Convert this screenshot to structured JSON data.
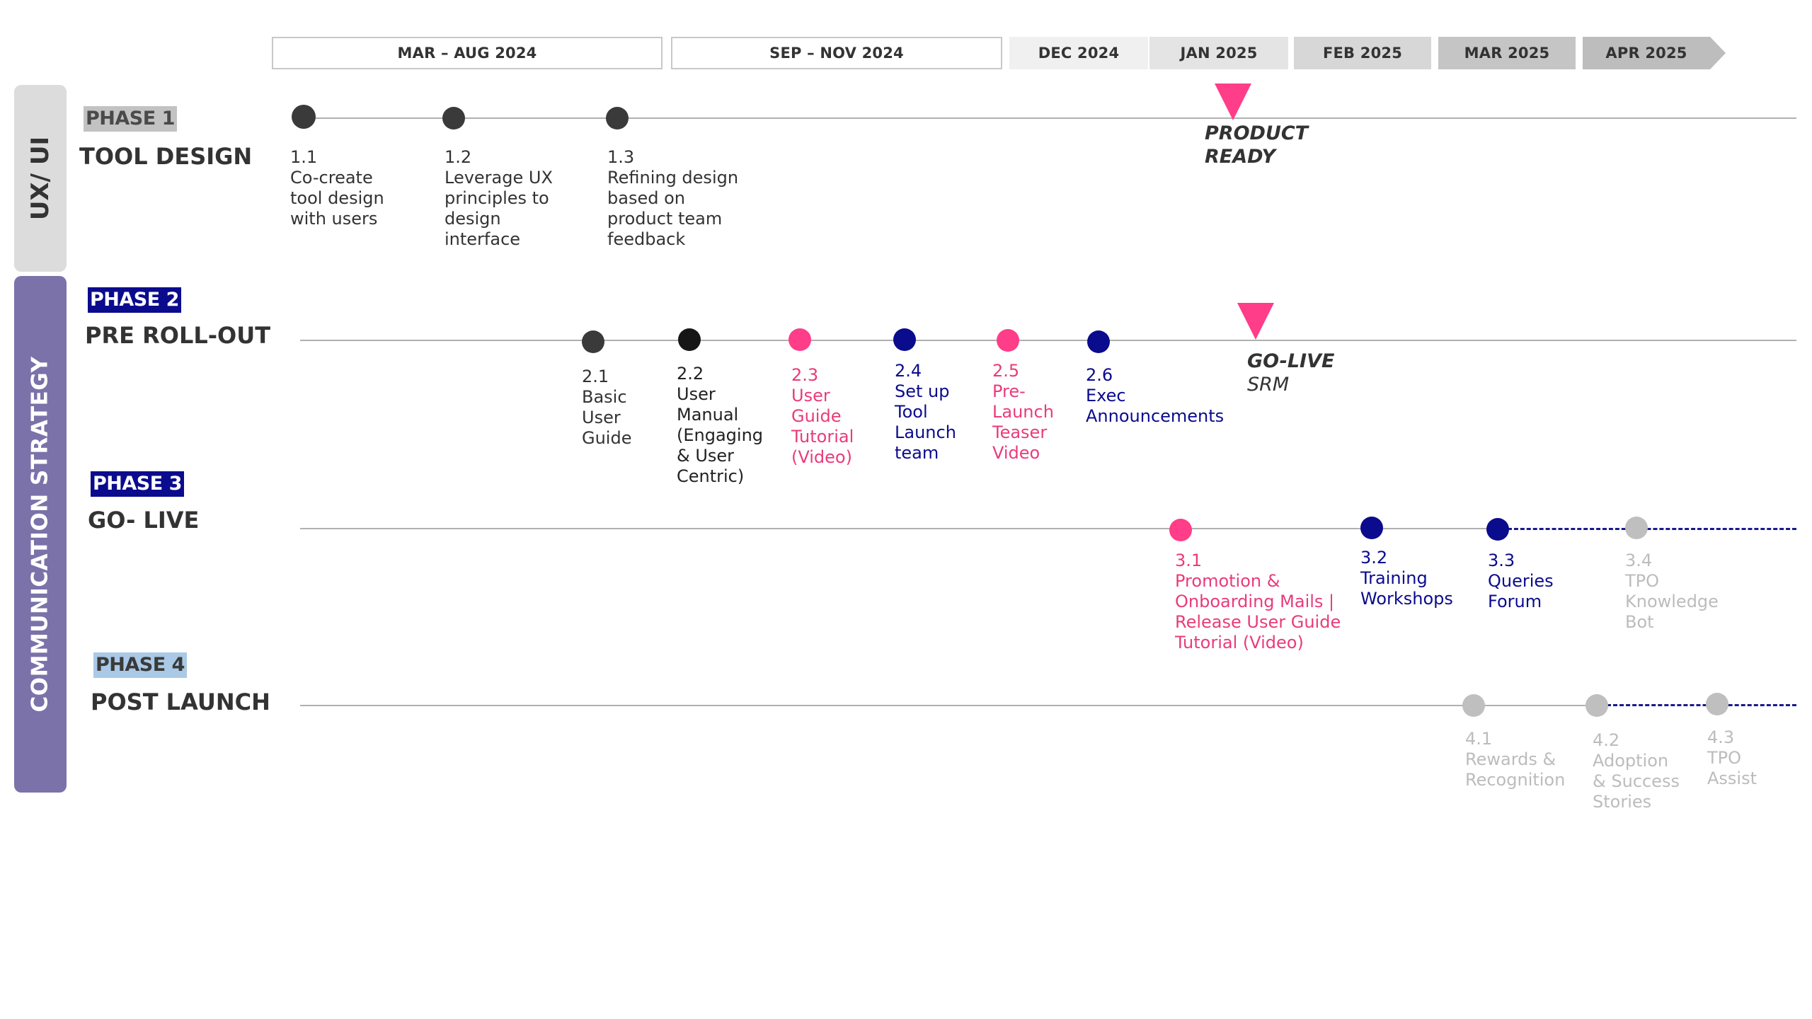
{
  "colors": {
    "dark": "#3a3a3a",
    "black": "#161616",
    "pink": "#ea3b7a",
    "navy": "#0b0b8e",
    "grey": "#bfbfbf",
    "marker": "#ff3d88",
    "tab_uxui": "#dcdcdc",
    "tab_comm": "#7a72a9"
  },
  "timeline": {
    "periods": [
      "MAR – AUG 2024",
      "SEP – NOV 2024",
      "DEC 2024",
      "JAN 2025",
      "FEB 2025",
      "MAR 2025",
      "APR 2025"
    ]
  },
  "tabs": {
    "uxui": "UX/ UI",
    "comm": "COMMUNICATION STRATEGY"
  },
  "phases": [
    {
      "tag": "PHASE 1",
      "title": "TOOL DESIGN",
      "items": [
        {
          "num": "1.1",
          "text": "Co-create\ntool design\nwith users"
        },
        {
          "num": "1.2",
          "text": "Leverage UX\nprinciples to\ndesign\ninterface"
        },
        {
          "num": "1.3",
          "text": "Refining design\nbased on\nproduct team\nfeedback"
        }
      ],
      "milestone": {
        "line1": "PRODUCT",
        "line2": "READY"
      }
    },
    {
      "tag": "PHASE 2",
      "title": "PRE ROLL-OUT",
      "items": [
        {
          "num": "2.1",
          "text": "Basic\nUser\nGuide"
        },
        {
          "num": "2.2",
          "text": "User\nManual\n(Engaging\n& User\nCentric)"
        },
        {
          "num": "2.3",
          "text": "User\nGuide\nTutorial\n(Video)"
        },
        {
          "num": "2.4",
          "text": "Set up\nTool\nLaunch\nteam"
        },
        {
          "num": "2.5",
          "text": "Pre-\nLaunch\nTeaser\nVideo"
        },
        {
          "num": "2.6",
          "text": "Exec\nAnnouncements"
        }
      ],
      "milestone": {
        "line1": "GO-LIVE",
        "line2": "SRM"
      }
    },
    {
      "tag": "PHASE 3",
      "title": "GO- LIVE",
      "items": [
        {
          "num": "3.1",
          "text": "Promotion &\nOnboarding Mails |\nRelease User Guide\nTutorial (Video)"
        },
        {
          "num": "3.2",
          "text": "Training\nWorkshops"
        },
        {
          "num": "3.3",
          "text": "Queries\nForum"
        },
        {
          "num": "3.4",
          "text": "TPO\nKnowledge\nBot"
        }
      ]
    },
    {
      "tag": "PHASE 4",
      "title": "POST LAUNCH",
      "items": [
        {
          "num": "4.1",
          "text": "Rewards &\nRecognition"
        },
        {
          "num": "4.2",
          "text": "Adoption\n& Success\nStories"
        },
        {
          "num": "4.3",
          "text": "TPO\nAssist"
        }
      ]
    }
  ]
}
